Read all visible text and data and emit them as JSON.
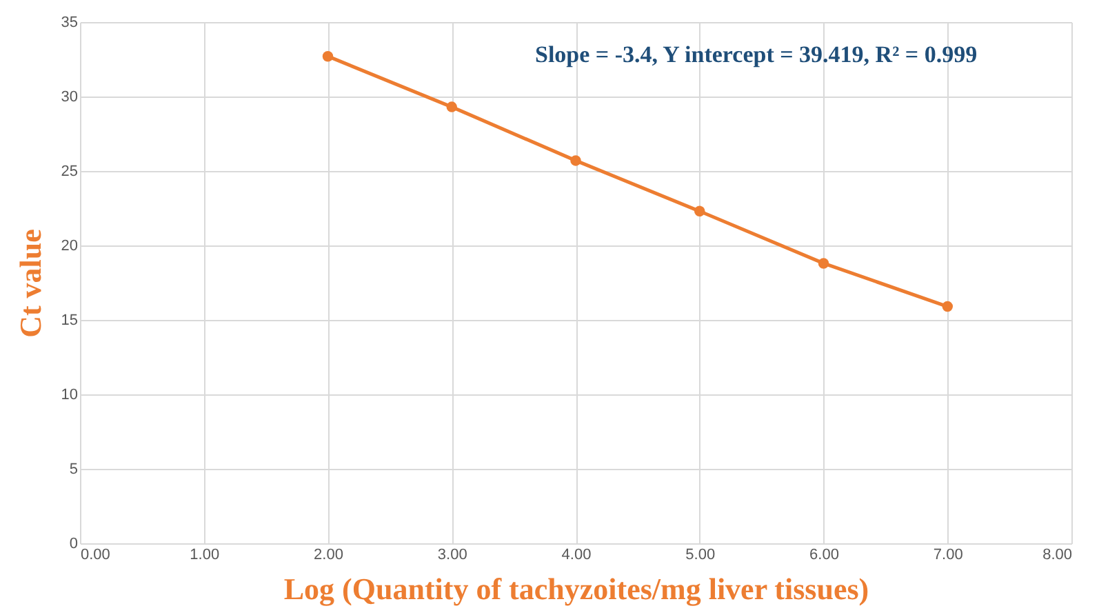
{
  "chart_data": {
    "type": "line",
    "xlabel": "Log (Quantity of tachyzoites/mg liver tissues)",
    "ylabel": "Ct value",
    "x": [
      2,
      3,
      4,
      5,
      6,
      7
    ],
    "series": [
      {
        "color": "#ed7d31",
        "values": [
          32.7,
          29.3,
          25.7,
          22.3,
          18.8,
          15.9
        ]
      }
    ],
    "xlim": [
      0,
      8
    ],
    "xticks": [
      {
        "value": 0,
        "label": "0.00"
      },
      {
        "value": 1,
        "label": "1.00"
      },
      {
        "value": 2,
        "label": "2.00"
      },
      {
        "value": 3,
        "label": "3.00"
      },
      {
        "value": 4,
        "label": "4.00"
      },
      {
        "value": 5,
        "label": "5.00"
      },
      {
        "value": 6,
        "label": "6.00"
      },
      {
        "value": 7,
        "label": "7.00"
      },
      {
        "value": 8,
        "label": "8.00"
      }
    ],
    "ylim": [
      0,
      35
    ],
    "yticks": [
      0,
      5,
      10,
      15,
      20,
      25,
      30,
      35
    ],
    "grid": true,
    "marker": "circle",
    "line_style": "solid",
    "annotations": [
      "Slope = -3.4, Y intercept = 39.419, R² = 0.999"
    ]
  }
}
